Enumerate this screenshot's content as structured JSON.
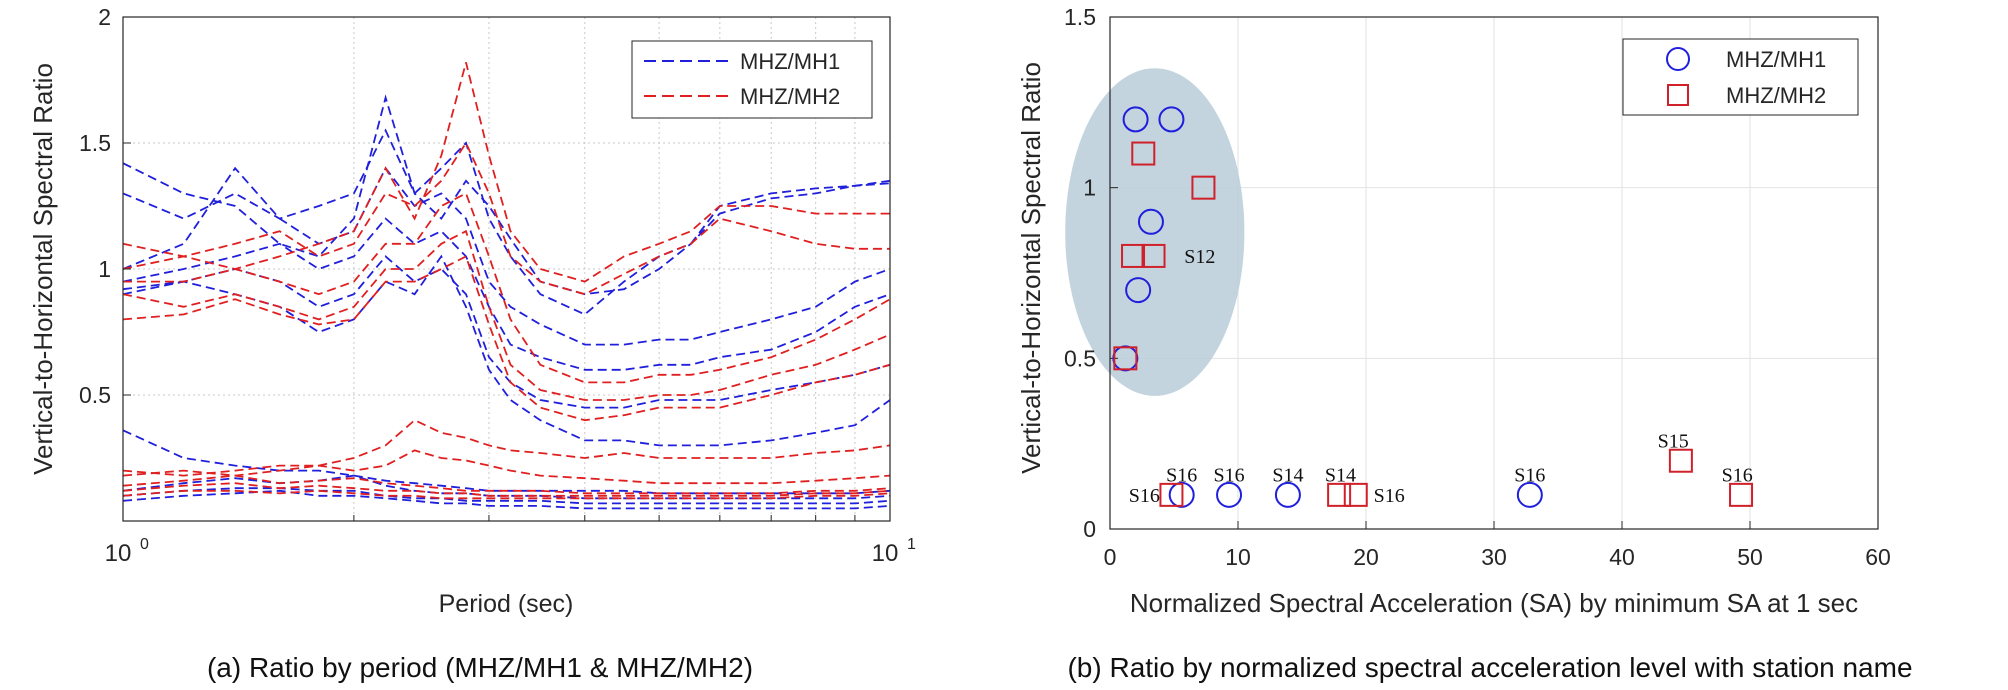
{
  "captions": {
    "a": "(a) Ratio by period (MHZ/MH1 & MHZ/MH2)",
    "b": "(b) Ratio by normalized spectral acceleration level with station name"
  },
  "chart_data": [
    {
      "type": "line",
      "xscale": "log",
      "xlim": [
        1,
        10
      ],
      "ylim": [
        0,
        2
      ],
      "xlabel": "Period (sec)",
      "ylabel": "Vertical-to-Horizontal Spectral Ratio",
      "xticks": [
        {
          "base": "10",
          "exp": "0"
        },
        {
          "base": "10",
          "exp": "1"
        }
      ],
      "yticks": [
        "2",
        "1.5",
        "1",
        "0.5"
      ],
      "ytick_values": [
        2,
        1.5,
        1,
        0.5
      ],
      "grid": "dotted",
      "legend_position": "top-right",
      "line_style": "dashed",
      "series_colors": {
        "MHZ/MH1": "#1f1fdc",
        "MHZ/MH2": "#e02020"
      },
      "legend": [
        {
          "label": "MHZ/MH1",
          "color": "#1f1fdc"
        },
        {
          "label": "MHZ/MH2",
          "color": "#e02020"
        }
      ],
      "x": [
        1.0,
        1.2,
        1.4,
        1.6,
        1.8,
        2.0,
        2.2,
        2.4,
        2.6,
        2.8,
        3.0,
        3.2,
        3.5,
        4.0,
        4.5,
        5.0,
        5.5,
        6.0,
        7.0,
        8.0,
        9.0,
        10.0
      ],
      "series": [
        {
          "group": "MHZ/MH1",
          "values": [
            1.42,
            1.3,
            1.25,
            1.1,
            1.05,
            1.2,
            1.68,
            1.3,
            1.2,
            1.35,
            1.25,
            1.12,
            0.95,
            0.9,
            0.92,
            1.0,
            1.1,
            1.22,
            1.28,
            1.3,
            1.33,
            1.35
          ]
        },
        {
          "group": "MHZ/MH1",
          "values": [
            1.3,
            1.2,
            1.3,
            1.2,
            1.25,
            1.3,
            1.55,
            1.3,
            1.4,
            1.5,
            1.2,
            1.05,
            0.9,
            0.82,
            0.95,
            1.05,
            1.1,
            1.25,
            1.3,
            1.32,
            1.33,
            1.34
          ]
        },
        {
          "group": "MHZ/MH1",
          "values": [
            1.0,
            1.1,
            1.4,
            1.2,
            1.1,
            1.15,
            1.4,
            1.25,
            1.3,
            1.2,
            0.95,
            0.85,
            0.78,
            0.7,
            0.7,
            0.72,
            0.72,
            0.75,
            0.8,
            0.85,
            0.95,
            1.0
          ]
        },
        {
          "group": "MHZ/MH1",
          "values": [
            0.95,
            1.0,
            1.05,
            1.1,
            1.0,
            1.05,
            1.2,
            1.1,
            1.15,
            1.05,
            0.85,
            0.7,
            0.65,
            0.6,
            0.6,
            0.62,
            0.62,
            0.65,
            0.68,
            0.75,
            0.85,
            0.9
          ]
        },
        {
          "group": "MHZ/MH1",
          "values": [
            0.9,
            0.95,
            1.0,
            0.95,
            0.85,
            0.9,
            1.05,
            0.95,
            1.0,
            0.9,
            0.65,
            0.55,
            0.48,
            0.45,
            0.45,
            0.48,
            0.48,
            0.48,
            0.52,
            0.55,
            0.58,
            0.62
          ]
        },
        {
          "group": "MHZ/MH1",
          "values": [
            0.92,
            0.95,
            0.9,
            0.85,
            0.75,
            0.8,
            0.95,
            0.9,
            1.05,
            0.85,
            0.6,
            0.48,
            0.4,
            0.32,
            0.32,
            0.3,
            0.3,
            0.3,
            0.32,
            0.35,
            0.38,
            0.48
          ]
        },
        {
          "group": "MHZ/MH1",
          "values": [
            0.36,
            0.25,
            0.22,
            0.2,
            0.2,
            0.18,
            0.16,
            0.15,
            0.14,
            0.13,
            0.12,
            0.12,
            0.12,
            0.12,
            0.12,
            0.11,
            0.11,
            0.11,
            0.11,
            0.11,
            0.11,
            0.12
          ]
        },
        {
          "group": "MHZ/MH1",
          "values": [
            0.12,
            0.15,
            0.17,
            0.15,
            0.16,
            0.18,
            0.14,
            0.12,
            0.11,
            0.11,
            0.1,
            0.1,
            0.1,
            0.09,
            0.09,
            0.09,
            0.09,
            0.09,
            0.09,
            0.09,
            0.09,
            0.1
          ]
        },
        {
          "group": "MHZ/MH1",
          "values": [
            0.1,
            0.12,
            0.13,
            0.13,
            0.12,
            0.12,
            0.1,
            0.09,
            0.09,
            0.08,
            0.08,
            0.08,
            0.08,
            0.07,
            0.07,
            0.07,
            0.07,
            0.07,
            0.07,
            0.07,
            0.07,
            0.08
          ]
        },
        {
          "group": "MHZ/MH1",
          "values": [
            0.08,
            0.1,
            0.11,
            0.12,
            0.1,
            0.1,
            0.09,
            0.08,
            0.07,
            0.07,
            0.06,
            0.06,
            0.06,
            0.05,
            0.05,
            0.05,
            0.05,
            0.05,
            0.05,
            0.05,
            0.05,
            0.06
          ]
        },
        {
          "group": "MHZ/MH2",
          "values": [
            1.1,
            1.05,
            1.0,
            1.05,
            1.1,
            1.15,
            1.4,
            1.2,
            1.45,
            1.82,
            1.45,
            1.15,
            1.0,
            0.95,
            1.05,
            1.1,
            1.15,
            1.25,
            1.25,
            1.22,
            1.22,
            1.22
          ]
        },
        {
          "group": "MHZ/MH2",
          "values": [
            1.0,
            1.05,
            1.1,
            1.15,
            1.05,
            1.1,
            1.3,
            1.25,
            1.35,
            1.5,
            1.3,
            1.05,
            0.95,
            0.9,
            0.98,
            1.05,
            1.1,
            1.2,
            1.15,
            1.1,
            1.08,
            1.08
          ]
        },
        {
          "group": "MHZ/MH2",
          "values": [
            0.95,
            0.95,
            1.0,
            0.95,
            0.9,
            0.95,
            1.1,
            1.1,
            1.25,
            1.3,
            1.05,
            0.8,
            0.62,
            0.55,
            0.55,
            0.58,
            0.58,
            0.6,
            0.65,
            0.72,
            0.8,
            0.88
          ]
        },
        {
          "group": "MHZ/MH2",
          "values": [
            0.9,
            0.85,
            0.9,
            0.85,
            0.8,
            0.85,
            1.0,
            1.0,
            1.1,
            1.15,
            0.85,
            0.62,
            0.52,
            0.48,
            0.48,
            0.5,
            0.5,
            0.52,
            0.58,
            0.62,
            0.68,
            0.74
          ]
        },
        {
          "group": "MHZ/MH2",
          "values": [
            0.8,
            0.82,
            0.88,
            0.82,
            0.78,
            0.8,
            0.95,
            0.95,
            1.0,
            1.05,
            0.78,
            0.55,
            0.45,
            0.4,
            0.42,
            0.45,
            0.45,
            0.45,
            0.5,
            0.55,
            0.58,
            0.62
          ]
        },
        {
          "group": "MHZ/MH2",
          "values": [
            0.2,
            0.18,
            0.2,
            0.22,
            0.22,
            0.25,
            0.3,
            0.4,
            0.35,
            0.33,
            0.3,
            0.28,
            0.27,
            0.25,
            0.27,
            0.25,
            0.25,
            0.25,
            0.25,
            0.27,
            0.28,
            0.3
          ]
        },
        {
          "group": "MHZ/MH2",
          "values": [
            0.18,
            0.2,
            0.18,
            0.2,
            0.22,
            0.2,
            0.22,
            0.28,
            0.25,
            0.24,
            0.22,
            0.2,
            0.18,
            0.17,
            0.16,
            0.15,
            0.15,
            0.15,
            0.15,
            0.16,
            0.17,
            0.18
          ]
        },
        {
          "group": "MHZ/MH2",
          "values": [
            0.14,
            0.16,
            0.18,
            0.15,
            0.16,
            0.17,
            0.15,
            0.14,
            0.13,
            0.12,
            0.12,
            0.12,
            0.12,
            0.11,
            0.11,
            0.11,
            0.11,
            0.11,
            0.11,
            0.12,
            0.12,
            0.13
          ]
        },
        {
          "group": "MHZ/MH2",
          "values": [
            0.12,
            0.14,
            0.15,
            0.13,
            0.14,
            0.13,
            0.12,
            0.12,
            0.11,
            0.11,
            0.1,
            0.1,
            0.1,
            0.1,
            0.1,
            0.1,
            0.1,
            0.1,
            0.1,
            0.11,
            0.11,
            0.12
          ]
        },
        {
          "group": "MHZ/MH2",
          "values": [
            0.1,
            0.12,
            0.12,
            0.11,
            0.12,
            0.11,
            0.1,
            0.1,
            0.09,
            0.09,
            0.09,
            0.09,
            0.09,
            0.09,
            0.09,
            0.09,
            0.09,
            0.09,
            0.09,
            0.1,
            0.1,
            0.11
          ]
        }
      ]
    },
    {
      "type": "scatter",
      "xlim": [
        0,
        60
      ],
      "ylim": [
        0,
        1.5
      ],
      "xlabel": "Normalized Spectral Acceleration (SA) by minimum SA at 1 sec",
      "ylabel": "Vertical-to-Horizontal Spectral Ratio",
      "xticks": [
        "0",
        "10",
        "20",
        "30",
        "40",
        "50",
        "60"
      ],
      "xtick_values": [
        0,
        10,
        20,
        30,
        40,
        50,
        60
      ],
      "yticks": [
        "0",
        "0.5",
        "1",
        "1.5"
      ],
      "ytick_values": [
        0,
        0.5,
        1,
        1.5
      ],
      "grid": true,
      "legend_position": "top-right",
      "highlight_region": {
        "shape": "ellipse",
        "center": [
          3.5,
          0.87
        ],
        "radius": [
          7,
          0.48
        ],
        "color": "#b9ccd9"
      },
      "series": [
        {
          "name": "MHZ/MH1",
          "marker": "circle",
          "color": "#1f1fdc",
          "points": [
            {
              "x": 2.0,
              "y": 1.2
            },
            {
              "x": 4.8,
              "y": 1.2
            },
            {
              "x": 3.2,
              "y": 0.9
            },
            {
              "x": 2.2,
              "y": 0.7
            },
            {
              "x": 1.2,
              "y": 0.5
            },
            {
              "x": 5.6,
              "y": 0.1
            },
            {
              "x": 9.3,
              "y": 0.1
            },
            {
              "x": 13.9,
              "y": 0.1
            },
            {
              "x": 32.8,
              "y": 0.1
            }
          ]
        },
        {
          "name": "MHZ/MH2",
          "marker": "square",
          "color": "#d0202a",
          "points": [
            {
              "x": 2.6,
              "y": 1.1
            },
            {
              "x": 7.3,
              "y": 1.0
            },
            {
              "x": 1.8,
              "y": 0.8
            },
            {
              "x": 3.4,
              "y": 0.8
            },
            {
              "x": 1.2,
              "y": 0.5
            },
            {
              "x": 4.8,
              "y": 0.1
            },
            {
              "x": 17.9,
              "y": 0.1
            },
            {
              "x": 19.2,
              "y": 0.1
            },
            {
              "x": 44.6,
              "y": 0.2
            },
            {
              "x": 49.3,
              "y": 0.1
            }
          ]
        }
      ],
      "annotations": [
        {
          "text": "S12",
          "x": 5.8,
          "y": 0.8,
          "anchor": "start"
        },
        {
          "text": "S16",
          "x": 5.6,
          "y": 0.16,
          "anchor": "middle"
        },
        {
          "text": "S16",
          "x": 9.3,
          "y": 0.16,
          "anchor": "middle"
        },
        {
          "text": "S14",
          "x": 13.9,
          "y": 0.16,
          "anchor": "middle"
        },
        {
          "text": "S14",
          "x": 18.0,
          "y": 0.16,
          "anchor": "middle"
        },
        {
          "text": "S16",
          "x": 32.8,
          "y": 0.16,
          "anchor": "middle"
        },
        {
          "text": "S15",
          "x": 44.0,
          "y": 0.26,
          "anchor": "middle"
        },
        {
          "text": "S16",
          "x": 49.0,
          "y": 0.16,
          "anchor": "middle"
        },
        {
          "text": "S16",
          "x": 3.9,
          "y": 0.1,
          "anchor": "end"
        },
        {
          "text": "S16",
          "x": 20.6,
          "y": 0.1,
          "anchor": "start"
        }
      ]
    }
  ]
}
